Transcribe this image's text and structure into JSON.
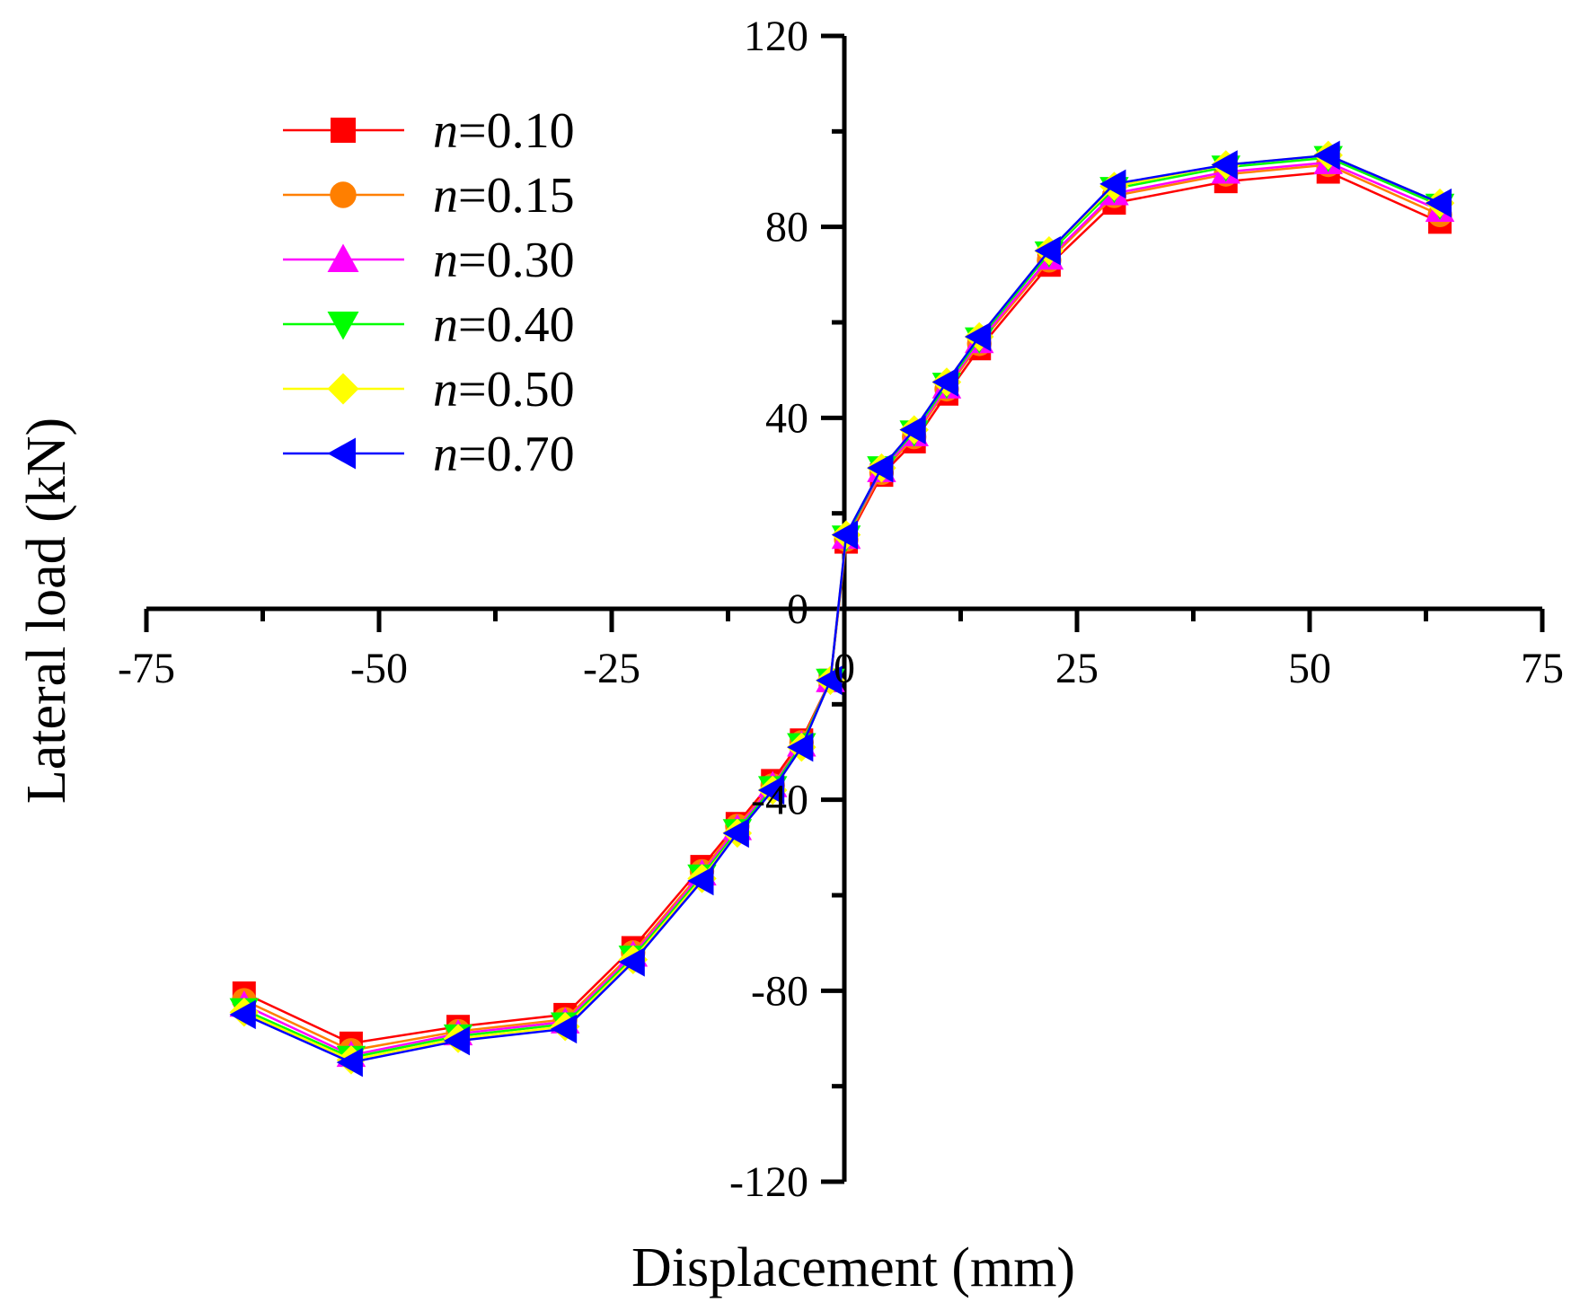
{
  "chart_data": {
    "type": "line",
    "title": "",
    "xlabel": "Displacement (mm)",
    "ylabel": "Lateral load (kN)",
    "xlim": [
      -75,
      75
    ],
    "ylim": [
      -120,
      120
    ],
    "x_ticks": [
      "-75",
      "-50",
      "-25",
      "0",
      "25",
      "50",
      "75"
    ],
    "y_ticks": [
      "-120",
      "-80",
      "-40",
      "0",
      "40",
      "80",
      "120"
    ],
    "legend_position": "top-left",
    "grid": false,
    "x": [
      -64.5,
      -53,
      -41.5,
      -30,
      -22.7,
      -15.3,
      -11.5,
      -7.7,
      -4.6,
      -1.5,
      0.2,
      4,
      7.5,
      11,
      14.5,
      22,
      29,
      41,
      52,
      64
    ],
    "series": [
      {
        "name": "n=0.10",
        "name_var": "n",
        "name_value": "=0.10",
        "color": "#ff0000",
        "marker": "square",
        "values": [
          -80.5,
          -91,
          -87.5,
          -85,
          -71,
          -54,
          -45,
          -36,
          -27.5,
          -15,
          14,
          28,
          35,
          45,
          54.5,
          72,
          85,
          89.5,
          91.5,
          81
        ]
      },
      {
        "name": "n=0.15",
        "name_var": "n",
        "name_value": "=0.15",
        "color": "#ff7f00",
        "marker": "circle",
        "values": [
          -82,
          -92.5,
          -88.5,
          -86,
          -72,
          -55,
          -45.5,
          -37,
          -28,
          -15,
          14.5,
          28.5,
          36,
          46,
          55.5,
          73,
          86.5,
          91,
          93,
          82.5
        ]
      },
      {
        "name": "n=0.30",
        "name_var": "n",
        "name_value": "=0.30",
        "color": "#ff00ff",
        "marker": "triangle-up",
        "values": [
          -83,
          -93.5,
          -89,
          -86.5,
          -72.5,
          -55.5,
          -46,
          -37,
          -28.5,
          -15,
          15,
          29,
          36.5,
          46.5,
          56,
          73.5,
          87,
          91.5,
          93.5,
          83.5
        ]
      },
      {
        "name": "n=0.40",
        "name_var": "n",
        "name_value": "=0.40",
        "color": "#00ff00",
        "marker": "triangle-down",
        "values": [
          -84,
          -94,
          -89.5,
          -87,
          -73,
          -56,
          -46.5,
          -37.5,
          -28.5,
          -15,
          15,
          29.5,
          37,
          47,
          56.5,
          74.5,
          88,
          92.5,
          94.5,
          84.5
        ]
      },
      {
        "name": "n=0.50",
        "name_var": "n",
        "name_value": "=0.50",
        "color": "#ffff00",
        "marker": "diamond",
        "values": [
          -84.5,
          -94.5,
          -90,
          -87.5,
          -73.5,
          -56.5,
          -47,
          -38,
          -29,
          -15,
          15.5,
          29.5,
          37.5,
          47.5,
          57,
          75,
          88.5,
          93,
          95,
          85
        ]
      },
      {
        "name": "n=0.70",
        "name_var": "n",
        "name_value": "=0.70",
        "color": "#0000ff",
        "marker": "triangle-left",
        "values": [
          -85,
          -95,
          -90.5,
          -88,
          -74,
          -57,
          -47,
          -38,
          -29,
          -15,
          15.5,
          29.5,
          37.5,
          47.5,
          57,
          75,
          89,
          93,
          95,
          85
        ]
      }
    ]
  }
}
